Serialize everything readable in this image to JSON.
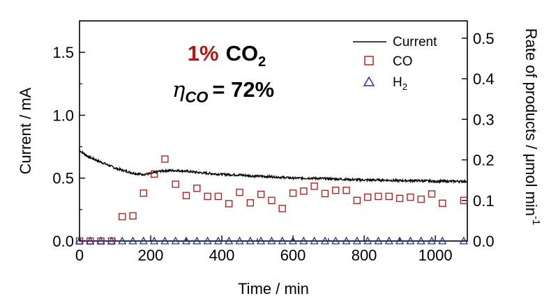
{
  "chart_data": {
    "type": "scatter",
    "xlabel": "Time / min",
    "ylabel_left": "Current / mA",
    "ylabel_right": "Rate of products / μmol min",
    "ylabel_right_sup": "-1",
    "xlim": [
      0,
      1090
    ],
    "ylim_left": [
      0,
      1.75
    ],
    "ylim_right": [
      0,
      0.5425
    ],
    "xticks": [
      0,
      200,
      400,
      600,
      800,
      1000
    ],
    "yticks_left": [
      0.0,
      0.5,
      1.0,
      1.5
    ],
    "yticks_right": [
      0.0,
      0.1,
      0.2,
      0.3,
      0.4,
      0.5
    ],
    "xtick_labels": [
      "0",
      "200",
      "400",
      "600",
      "800",
      "1000"
    ],
    "yticks_left_labels": [
      "0.0",
      "0.5",
      "1.0",
      "1.5"
    ],
    "yticks_right_labels": [
      "0.0",
      "0.1",
      "0.2",
      "0.3",
      "0.4",
      "0.5"
    ],
    "legend_position": "top-right",
    "annotation": {
      "line1_red": "1%",
      "line1_black": "CO",
      "line1_sub": "2",
      "line2_eta": "η",
      "line2_sub": "CO",
      "line2_value": "= 72%"
    },
    "series": [
      {
        "name": "Current",
        "kind": "line",
        "axis": "left",
        "color": "#000000",
        "x": [
          0,
          10,
          25,
          50,
          75,
          100,
          125,
          150,
          175,
          200,
          225,
          250,
          275,
          300,
          350,
          400,
          450,
          500,
          550,
          600,
          650,
          700,
          750,
          800,
          850,
          900,
          950,
          1000,
          1050,
          1090
        ],
        "y": [
          0.72,
          0.7,
          0.67,
          0.64,
          0.61,
          0.58,
          0.56,
          0.54,
          0.53,
          0.535,
          0.555,
          0.56,
          0.56,
          0.555,
          0.54,
          0.53,
          0.525,
          0.515,
          0.51,
          0.5,
          0.5,
          0.495,
          0.49,
          0.485,
          0.485,
          0.48,
          0.48,
          0.475,
          0.475,
          0.475
        ]
      },
      {
        "name": "CO",
        "kind": "square",
        "axis": "right",
        "color": "#b22222",
        "x": [
          0,
          30,
          60,
          90,
          120,
          150,
          180,
          210,
          240,
          270,
          300,
          330,
          360,
          390,
          420,
          450,
          480,
          510,
          540,
          570,
          600,
          630,
          660,
          690,
          720,
          750,
          780,
          810,
          840,
          870,
          900,
          930,
          960,
          990,
          1020,
          1080
        ],
        "y": [
          0.0,
          0.0,
          0.0,
          0.0,
          0.06,
          0.062,
          0.118,
          0.165,
          0.202,
          0.14,
          0.112,
          0.13,
          0.11,
          0.11,
          0.092,
          0.12,
          0.094,
          0.115,
          0.1,
          0.08,
          0.118,
          0.123,
          0.135,
          0.117,
          0.125,
          0.125,
          0.1,
          0.108,
          0.11,
          0.11,
          0.105,
          0.108,
          0.103,
          0.116,
          0.093,
          0.1
        ]
      },
      {
        "name": "H2",
        "name_base": "H",
        "name_sub": "2",
        "kind": "triangle",
        "axis": "right",
        "color": "#2230a0",
        "x": [
          0,
          30,
          60,
          90,
          120,
          150,
          180,
          210,
          240,
          270,
          300,
          330,
          360,
          390,
          420,
          450,
          480,
          510,
          540,
          570,
          600,
          630,
          660,
          690,
          720,
          750,
          780,
          810,
          840,
          870,
          900,
          930,
          960,
          990,
          1020,
          1080
        ],
        "y": [
          0,
          0,
          0,
          0,
          0,
          0,
          0,
          0,
          0,
          0,
          0,
          0,
          0,
          0,
          0,
          0,
          0,
          0,
          0,
          0,
          0,
          0,
          0,
          0,
          0,
          0,
          0,
          0,
          0,
          0,
          0,
          0,
          0,
          0,
          0,
          0
        ]
      }
    ]
  }
}
